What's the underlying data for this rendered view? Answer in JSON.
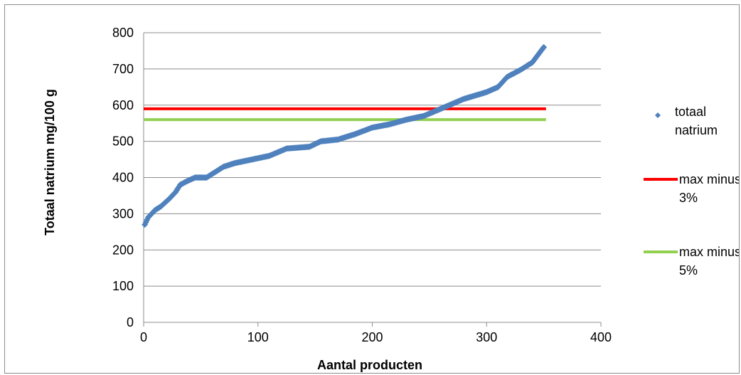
{
  "chart_data": {
    "type": "scatter",
    "xlabel": "Aantal producten",
    "ylabel": "Totaal natrium mg/100 g",
    "xlim": [
      0,
      400
    ],
    "ylim": [
      0,
      800
    ],
    "x_ticks": [
      "0",
      "100",
      "200",
      "300",
      "400"
    ],
    "y_ticks": [
      "0",
      "100",
      "200",
      "300",
      "400",
      "500",
      "600",
      "700",
      "800"
    ],
    "grid": "horizontal",
    "legend_position": "right",
    "colors": {
      "scatter": "#4f81bd",
      "max3": "#ff0000",
      "max5": "#92d050",
      "grid": "#8c8c8c"
    },
    "series": [
      {
        "name": "totaal natrium",
        "kind": "scatter",
        "curve": [
          [
            1,
            270
          ],
          [
            4,
            290
          ],
          [
            10,
            310
          ],
          [
            15,
            320
          ],
          [
            22,
            340
          ],
          [
            28,
            360
          ],
          [
            32,
            380
          ],
          [
            38,
            390
          ],
          [
            45,
            400
          ],
          [
            55,
            400
          ],
          [
            60,
            410
          ],
          [
            70,
            430
          ],
          [
            80,
            440
          ],
          [
            95,
            450
          ],
          [
            110,
            460
          ],
          [
            125,
            480
          ],
          [
            145,
            485
          ],
          [
            155,
            500
          ],
          [
            170,
            505
          ],
          [
            185,
            520
          ],
          [
            200,
            538
          ],
          [
            215,
            547
          ],
          [
            230,
            560
          ],
          [
            245,
            570
          ],
          [
            260,
            590
          ],
          [
            280,
            617
          ],
          [
            300,
            636
          ],
          [
            310,
            650
          ],
          [
            318,
            678
          ],
          [
            330,
            698
          ],
          [
            340,
            718
          ],
          [
            350,
            760
          ]
        ]
      },
      {
        "name": "max minus 3%",
        "kind": "line",
        "x": [
          0,
          352
        ],
        "y": [
          590,
          590
        ]
      },
      {
        "name": "max minus 5%",
        "kind": "line",
        "x": [
          0,
          352
        ],
        "y": [
          560,
          560
        ]
      }
    ],
    "legend": [
      {
        "lines": [
          "totaal",
          "natrium"
        ]
      },
      {
        "lines": [
          "max minus",
          "3%"
        ]
      },
      {
        "lines": [
          "max minus",
          "5%"
        ]
      }
    ]
  }
}
